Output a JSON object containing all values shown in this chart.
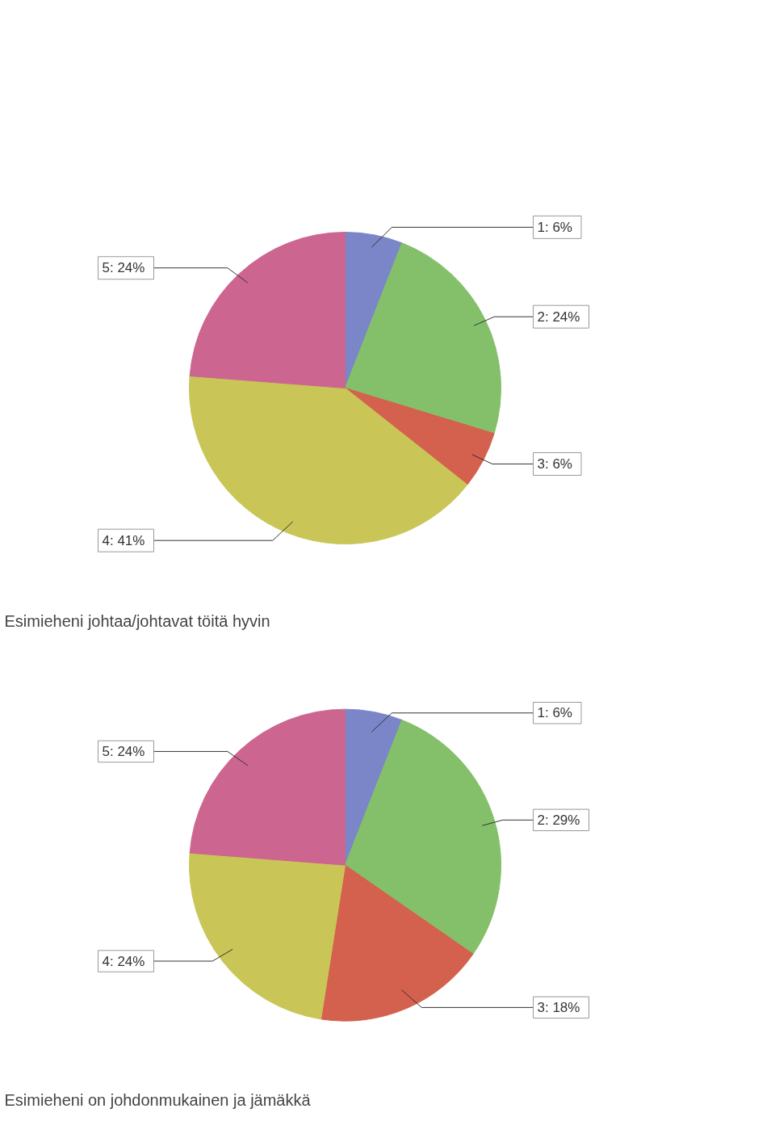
{
  "chart_data": [
    {
      "type": "pie",
      "categories": [
        null,
        null,
        null,
        null,
        null
      ],
      "values": [
        6,
        24,
        6,
        41,
        24
      ],
      "colors": [
        "#7a86c8",
        "#84c06a",
        "#d4604e",
        "#c9c657",
        "#cc6690"
      ],
      "value_labels": [
        "1: 6%",
        "2: 24%",
        "3: 6%",
        "4: 41%",
        "5: 24%"
      ]
    },
    {
      "type": "pie",
      "title": "Esimieheni johtaa/johtavat töitä hyvin",
      "categories": [
        null,
        null,
        null,
        null,
        null
      ],
      "values": [
        6,
        29,
        18,
        24,
        24
      ],
      "colors": [
        "#7a86c8",
        "#84c06a",
        "#d4604e",
        "#c9c657",
        "#cc6690"
      ],
      "value_labels": [
        "1: 6%",
        "2: 29%",
        "3: 18%",
        "4: 24%",
        "5: 24%"
      ],
      "annotations": [
        "Esimieheni on johdonmukainen ja jämäkkä"
      ]
    }
  ]
}
